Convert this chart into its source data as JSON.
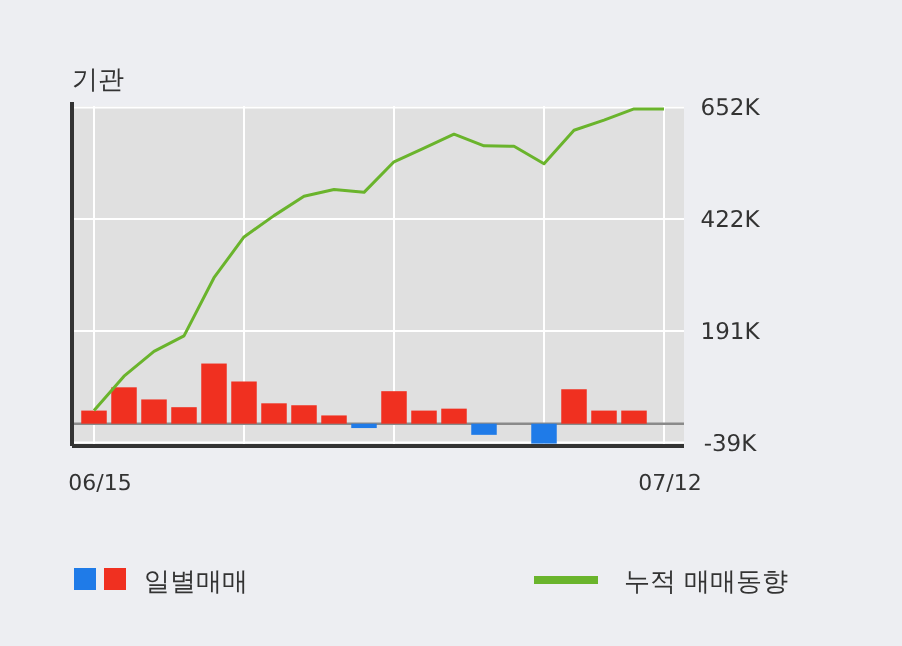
{
  "chart_data": {
    "type": "bar",
    "title": "기관",
    "categories": [
      "06/15",
      null,
      null,
      null,
      null,
      null,
      null,
      null,
      null,
      null,
      null,
      null,
      null,
      null,
      null,
      null,
      null,
      null,
      null,
      "07/12"
    ],
    "series": [
      {
        "name": "일별매매",
        "colors": [
          "#f03020",
          "#f03020",
          "#f03020",
          "#f03020",
          "#f03020",
          "#f03020",
          "#f03020",
          "#f03020",
          "#f03020",
          "#1f7be8",
          "#f03020",
          "#f03020",
          "#f03020",
          "#1f7be8",
          "#f03020",
          "#1f7be8",
          "#f03020",
          "#f03020",
          "#f03020",
          "#f03020"
        ],
        "values": [
          27,
          75,
          50,
          34,
          124,
          87,
          42,
          38,
          17,
          -9,
          67,
          27,
          31,
          -23,
          0,
          -41,
          71,
          27,
          27,
          0
        ]
      },
      {
        "name": "누적 매매동향",
        "type": "line",
        "color": "#6ab42c",
        "values": [
          27,
          98,
          149,
          181,
          301,
          385,
          429,
          469,
          483,
          477,
          540,
          568,
          597,
          573,
          572,
          536,
          605,
          626,
          649,
          649
        ]
      }
    ],
    "ylim": [
      -46,
      655
    ],
    "yticks": [
      {
        "value": 652,
        "label": "652K"
      },
      {
        "value": 422,
        "label": "422K"
      },
      {
        "value": 191,
        "label": "191K"
      },
      {
        "value": -39,
        "label": "-39K"
      }
    ],
    "grid": true,
    "legend": "bottom",
    "ref_lines": [
      {
        "axis": "y",
        "value": 0,
        "color": "#8a8a8a"
      }
    ]
  }
}
